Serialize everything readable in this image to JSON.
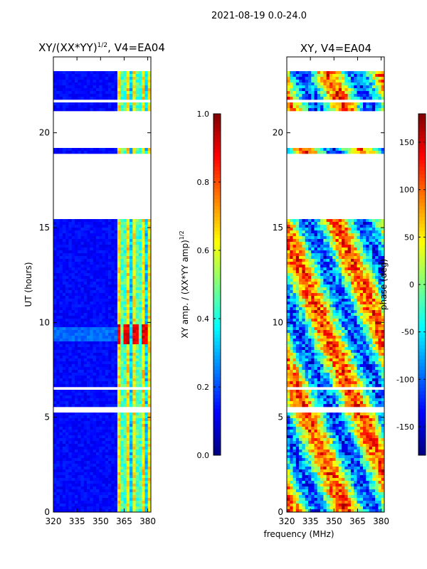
{
  "suptitle": "2021-08-19 0.0-24.0",
  "xlabel_shared": "frequency (MHz)",
  "chart_data": [
    {
      "type": "heatmap",
      "title_main": "XY/(XX*YY)",
      "title_sup": "1/2",
      "title_tail": ", V4=EA04",
      "xlabel": "",
      "ylabel": "UT (hours)",
      "xlim": [
        320,
        382
      ],
      "ylim": [
        0,
        24
      ],
      "xticks": [
        320,
        335,
        350,
        365,
        380
      ],
      "yticks": [
        0,
        5,
        10,
        15,
        20
      ],
      "colormap": "jet",
      "colorbar": {
        "label_main": "XY amp. / (XX*YY amp)",
        "label_sup": "1/2",
        "range": [
          0.0,
          1.0
        ],
        "ticks": [
          "0.0",
          "0.2",
          "0.4",
          "0.6",
          "0.8",
          "1.0"
        ]
      },
      "gaps_hours": [
        [
          23.3,
          24.0
        ],
        [
          21.6,
          21.8
        ],
        [
          19.2,
          21.1
        ],
        [
          17.6,
          18.9
        ],
        [
          15.4,
          17.6
        ],
        [
          6.4,
          6.6
        ],
        [
          5.2,
          5.5
        ]
      ],
      "bright_band_MHz": [
        361,
        382
      ],
      "hot_spot_hours": [
        8.9,
        9.9
      ],
      "background_value": 0.1
    },
    {
      "type": "heatmap",
      "title": "XY, V4=EA04",
      "xlabel": "",
      "ylabel": "",
      "xlim": [
        320,
        382
      ],
      "ylim": [
        0,
        24
      ],
      "xticks": [
        320,
        335,
        350,
        365,
        380
      ],
      "yticks": [
        0,
        5,
        10,
        15,
        20
      ],
      "colormap": "jet",
      "colorbar": {
        "label": "phase (deg)",
        "range": [
          -180,
          180
        ],
        "ticks": [
          -150,
          -100,
          -50,
          0,
          50,
          100,
          150
        ]
      },
      "gaps_hours": [
        [
          23.3,
          24.0
        ],
        [
          21.6,
          21.8
        ],
        [
          19.2,
          21.1
        ],
        [
          17.6,
          18.9
        ],
        [
          15.4,
          17.6
        ],
        [
          6.4,
          6.6
        ],
        [
          5.2,
          5.5
        ]
      ]
    }
  ]
}
